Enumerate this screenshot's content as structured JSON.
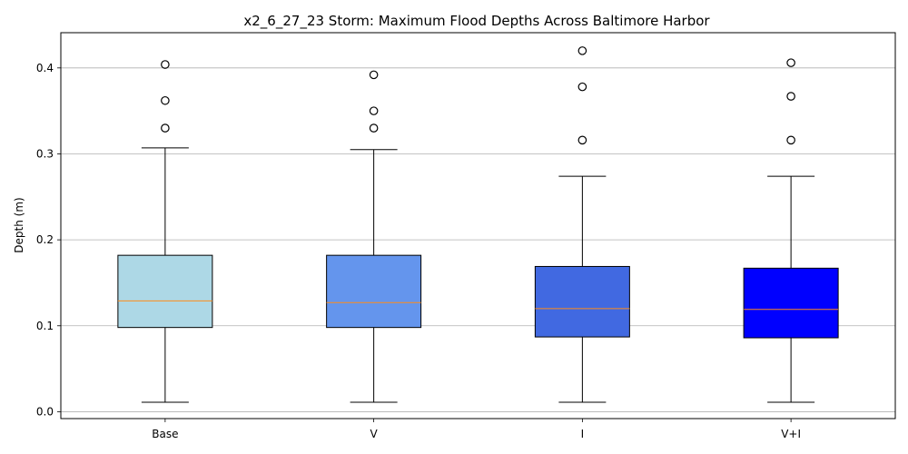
{
  "chart_data": {
    "type": "box",
    "title": "x2_6_27_23 Storm: Maximum Flood Depths Across Baltimore Harbor",
    "xlabel": "",
    "ylabel": "Depth (m)",
    "ylim": [
      -0.008,
      0.441
    ],
    "yticks": [
      0.0,
      0.1,
      0.2,
      0.3,
      0.4
    ],
    "ytick_labels": [
      "0.0",
      "0.1",
      "0.2",
      "0.3",
      "0.4"
    ],
    "grid": {
      "y": true,
      "x": false
    },
    "median_color": "#ff8c1a",
    "categories": [
      "Base",
      "V",
      "I",
      "V+I"
    ],
    "boxes": [
      {
        "label": "Base",
        "color": "#add8e6",
        "whisker_low": 0.011,
        "q1": 0.098,
        "median": 0.129,
        "q3": 0.182,
        "whisker_high": 0.307,
        "outliers": [
          0.33,
          0.362,
          0.404
        ]
      },
      {
        "label": "V",
        "color": "#6495ed",
        "whisker_low": 0.011,
        "q1": 0.098,
        "median": 0.127,
        "q3": 0.182,
        "whisker_high": 0.305,
        "outliers": [
          0.33,
          0.35,
          0.392
        ]
      },
      {
        "label": "I",
        "color": "#4169e1",
        "whisker_low": 0.011,
        "q1": 0.087,
        "median": 0.12,
        "q3": 0.169,
        "whisker_high": 0.274,
        "outliers": [
          0.316,
          0.378,
          0.42
        ]
      },
      {
        "label": "V+I",
        "color": "#0000ff",
        "whisker_low": 0.011,
        "q1": 0.086,
        "median": 0.119,
        "q3": 0.167,
        "whisker_high": 0.274,
        "outliers": [
          0.316,
          0.367,
          0.406
        ]
      }
    ]
  }
}
